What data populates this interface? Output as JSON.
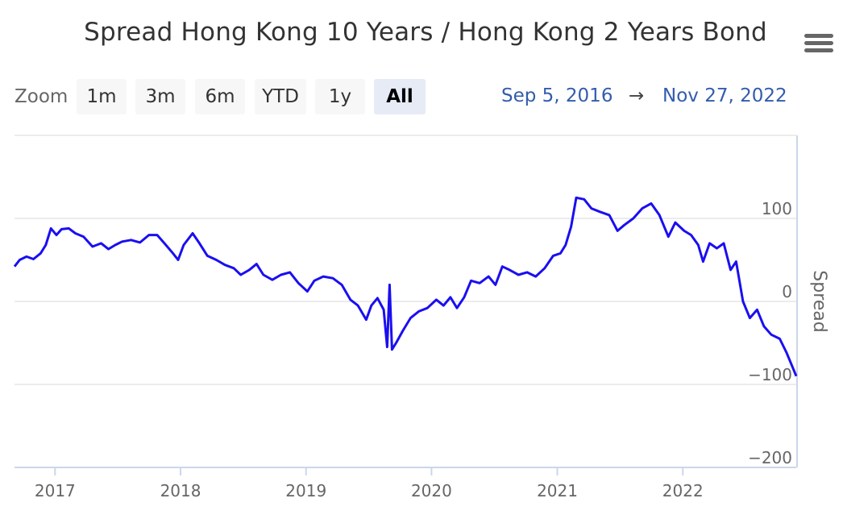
{
  "title": "Spread Hong Kong 10 Years / Hong Kong 2 Years Bond",
  "zoom": {
    "label": "Zoom",
    "buttons": [
      "1m",
      "3m",
      "6m",
      "YTD",
      "1y",
      "All"
    ],
    "active": "All"
  },
  "range": {
    "from": "Sep 5, 2016",
    "arrow": "→",
    "to": "Nov 27, 2022"
  },
  "icons": {
    "menu": "hamburger-menu-icon"
  },
  "colors": {
    "series": "#1a0ff0",
    "range_text": "#335cad"
  },
  "chart_data": {
    "type": "line",
    "title": "Spread Hong Kong 10 Years / Hong Kong 2 Years Bond",
    "xlabel": "",
    "ylabel": "Spread",
    "x_ticks": [
      "2017",
      "2018",
      "2019",
      "2020",
      "2021",
      "2022"
    ],
    "y_ticks": [
      100,
      0,
      -100,
      -200
    ],
    "ylim": [
      -200,
      200
    ],
    "xlim": [
      "2016-09-05",
      "2022-11-27"
    ],
    "grid": true,
    "series": [
      {
        "name": "",
        "points": [
          [
            "2016-09-05",
            42
          ],
          [
            "2016-09-20",
            50
          ],
          [
            "2016-10-10",
            54
          ],
          [
            "2016-10-30",
            51
          ],
          [
            "2016-11-20",
            58
          ],
          [
            "2016-12-05",
            68
          ],
          [
            "2016-12-20",
            88
          ],
          [
            "2017-01-05",
            80
          ],
          [
            "2017-01-20",
            87
          ],
          [
            "2017-02-10",
            88
          ],
          [
            "2017-03-01",
            82
          ],
          [
            "2017-03-25",
            78
          ],
          [
            "2017-04-20",
            66
          ],
          [
            "2017-05-15",
            70
          ],
          [
            "2017-06-05",
            63
          ],
          [
            "2017-06-25",
            68
          ],
          [
            "2017-07-15",
            72
          ],
          [
            "2017-08-10",
            74
          ],
          [
            "2017-09-05",
            71
          ],
          [
            "2017-10-01",
            80
          ],
          [
            "2017-10-25",
            80
          ],
          [
            "2017-11-15",
            70
          ],
          [
            "2017-12-10",
            58
          ],
          [
            "2017-12-25",
            50
          ],
          [
            "2018-01-10",
            68
          ],
          [
            "2018-02-05",
            82
          ],
          [
            "2018-02-25",
            70
          ],
          [
            "2018-03-20",
            55
          ],
          [
            "2018-04-15",
            50
          ],
          [
            "2018-05-10",
            44
          ],
          [
            "2018-06-05",
            40
          ],
          [
            "2018-06-25",
            32
          ],
          [
            "2018-07-20",
            38
          ],
          [
            "2018-08-10",
            45
          ],
          [
            "2018-08-30",
            32
          ],
          [
            "2018-09-25",
            26
          ],
          [
            "2018-10-20",
            32
          ],
          [
            "2018-11-15",
            35
          ],
          [
            "2018-12-10",
            22
          ],
          [
            "2019-01-05",
            12
          ],
          [
            "2019-01-25",
            25
          ],
          [
            "2019-02-20",
            30
          ],
          [
            "2019-03-20",
            28
          ],
          [
            "2019-04-15",
            20
          ],
          [
            "2019-05-10",
            2
          ],
          [
            "2019-06-01",
            -5
          ],
          [
            "2019-06-25",
            -22
          ],
          [
            "2019-07-10",
            -5
          ],
          [
            "2019-07-28",
            4
          ],
          [
            "2019-08-15",
            -10
          ],
          [
            "2019-08-25",
            -55
          ],
          [
            "2019-09-01",
            20
          ],
          [
            "2019-09-08",
            -58
          ],
          [
            "2019-09-20",
            -50
          ],
          [
            "2019-10-10",
            -35
          ],
          [
            "2019-11-01",
            -20
          ],
          [
            "2019-11-25",
            -12
          ],
          [
            "2019-12-20",
            -8
          ],
          [
            "2020-01-15",
            2
          ],
          [
            "2020-02-05",
            -5
          ],
          [
            "2020-02-25",
            5
          ],
          [
            "2020-03-15",
            -8
          ],
          [
            "2020-04-05",
            5
          ],
          [
            "2020-04-25",
            25
          ],
          [
            "2020-05-20",
            22
          ],
          [
            "2020-06-15",
            30
          ],
          [
            "2020-07-05",
            20
          ],
          [
            "2020-07-25",
            42
          ],
          [
            "2020-08-15",
            38
          ],
          [
            "2020-09-10",
            32
          ],
          [
            "2020-10-05",
            35
          ],
          [
            "2020-10-30",
            30
          ],
          [
            "2020-11-25",
            40
          ],
          [
            "2020-12-20",
            55
          ],
          [
            "2021-01-10",
            58
          ],
          [
            "2021-01-25",
            68
          ],
          [
            "2021-02-10",
            90
          ],
          [
            "2021-02-25",
            125
          ],
          [
            "2021-03-20",
            123
          ],
          [
            "2021-04-10",
            112
          ],
          [
            "2021-05-05",
            108
          ],
          [
            "2021-06-01",
            104
          ],
          [
            "2021-06-25",
            85
          ],
          [
            "2021-07-15",
            92
          ],
          [
            "2021-08-10",
            100
          ],
          [
            "2021-09-05",
            112
          ],
          [
            "2021-10-01",
            118
          ],
          [
            "2021-10-25",
            104
          ],
          [
            "2021-11-20",
            78
          ],
          [
            "2021-12-10",
            95
          ],
          [
            "2022-01-05",
            85
          ],
          [
            "2022-01-25",
            80
          ],
          [
            "2022-02-15",
            68
          ],
          [
            "2022-03-01",
            48
          ],
          [
            "2022-03-20",
            70
          ],
          [
            "2022-04-10",
            64
          ],
          [
            "2022-04-30",
            70
          ],
          [
            "2022-05-20",
            38
          ],
          [
            "2022-06-05",
            48
          ],
          [
            "2022-06-25",
            0
          ],
          [
            "2022-07-15",
            -20
          ],
          [
            "2022-08-05",
            -10
          ],
          [
            "2022-08-25",
            -30
          ],
          [
            "2022-09-15",
            -40
          ],
          [
            "2022-10-10",
            -45
          ],
          [
            "2022-10-30",
            -62
          ],
          [
            "2022-11-27",
            -90
          ]
        ]
      }
    ]
  }
}
